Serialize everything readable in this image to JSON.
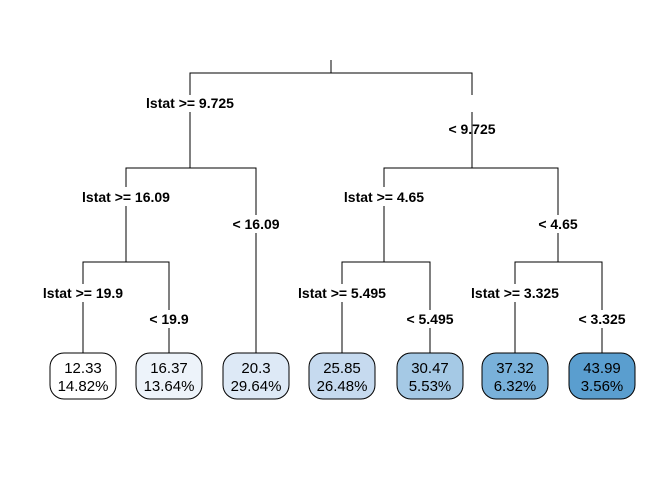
{
  "tree": {
    "root": {
      "left_label": "lstat >= 9.725",
      "right_label": "< 9.725"
    },
    "left_branch": {
      "left_label": "lstat >= 16.09",
      "right_label": "< 16.09",
      "left_branch": {
        "left_label": "lstat >= 19.9",
        "right_label": "< 19.9"
      }
    },
    "right_branch": {
      "left_label": "lstat >= 4.65",
      "right_label": "< 4.65",
      "left_branch": {
        "left_label": "lstat >= 5.495",
        "right_label": "< 5.495"
      },
      "right_branch": {
        "left_label": "lstat >= 3.325",
        "right_label": "< 3.325"
      }
    },
    "leaves": [
      {
        "value": "12.33",
        "percent": "14.82%",
        "fill": "#ffffff"
      },
      {
        "value": "16.37",
        "percent": "13.64%",
        "fill": "#edf3fa"
      },
      {
        "value": "20.3",
        "percent": "29.64%",
        "fill": "#dde9f6"
      },
      {
        "value": "25.85",
        "percent": "26.48%",
        "fill": "#c6daef"
      },
      {
        "value": "30.47",
        "percent": "5.53%",
        "fill": "#a5c9e5"
      },
      {
        "value": "37.32",
        "percent": "6.32%",
        "fill": "#79b1da"
      },
      {
        "value": "43.99",
        "percent": "3.56%",
        "fill": "#5a9ecf"
      }
    ]
  }
}
